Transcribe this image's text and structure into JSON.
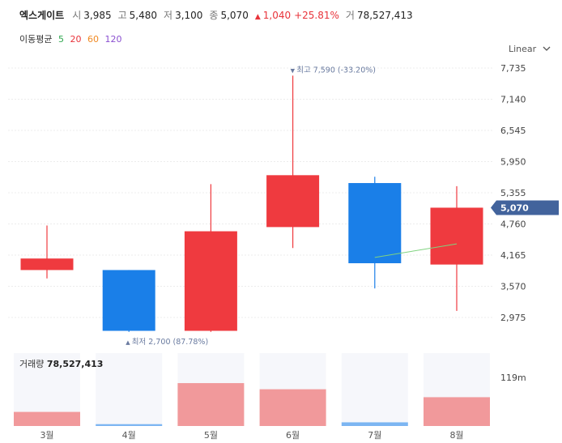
{
  "header": {
    "name": "엑스게이트",
    "open_label": "시",
    "open": "3,985",
    "high_label": "고",
    "high": "5,480",
    "low_label": "저",
    "low": "3,100",
    "close_label": "종",
    "close": "5,070",
    "change_arrow": "▲",
    "change": "1,040",
    "change_pct": "+25.81%",
    "volume_label": "거",
    "volume": "78,527,413"
  },
  "moving_average": {
    "label": "이동평균",
    "periods": [
      {
        "value": "5",
        "color": "#2fa84f"
      },
      {
        "value": "20",
        "color": "#e8333a"
      },
      {
        "value": "60",
        "color": "#f08a24"
      },
      {
        "value": "120",
        "color": "#8a4fd0"
      }
    ]
  },
  "scale_toggle": {
    "label": "Linear",
    "icon": "chevron-down-icon"
  },
  "colors": {
    "up": "#ef3a3f",
    "down": "#1a7fe8",
    "badge": "#42639c",
    "volume_up": "#f1999b",
    "volume_down": "#7cb5f2"
  },
  "chart_data": {
    "type": "candlestick",
    "title": "엑스게이트",
    "categories": [
      "3월",
      "4월",
      "5월",
      "6월",
      "7월",
      "8월"
    ],
    "ohlc": [
      {
        "open": 3880,
        "high": 4730,
        "low": 3720,
        "close": 4100
      },
      {
        "open": 3880,
        "high": 3880,
        "low": 2700,
        "close": 2720
      },
      {
        "open": 2720,
        "high": 5520,
        "low": 2700,
        "close": 4620
      },
      {
        "open": 4700,
        "high": 7590,
        "low": 4300,
        "close": 5690
      },
      {
        "open": 5540,
        "high": 5660,
        "low": 3530,
        "close": 4010
      },
      {
        "open": 3985,
        "high": 5480,
        "low": 3100,
        "close": 5070
      }
    ],
    "ylim": [
      2700,
      7900
    ],
    "ytick_labels": [
      "7,735",
      "7,140",
      "6,545",
      "5,950",
      "5,355",
      "4,760",
      "4,165",
      "3,570",
      "2,975"
    ],
    "ytick_values": [
      7735,
      7140,
      6545,
      5950,
      5355,
      4760,
      4165,
      3570,
      2975
    ],
    "current_price_label": "5,070",
    "current_price": 5070,
    "ma5": [
      {
        "index": 4,
        "value": 4120
      },
      {
        "index": 5,
        "value": 4380
      }
    ],
    "max_annotation": {
      "text": "최고 7,590 (-33.20%)",
      "index": 3,
      "value": 7590,
      "arrow": "▼"
    },
    "min_annotation": {
      "text": "최저 2,700 (87.78%)",
      "index": 1,
      "value": 2700,
      "arrow": "▲"
    },
    "volume": {
      "label": "거래량",
      "value_label": "78,527,413",
      "values": [
        23,
        3,
        70,
        60,
        6,
        47
      ],
      "ymax": 119,
      "tick_label": "119m"
    }
  }
}
